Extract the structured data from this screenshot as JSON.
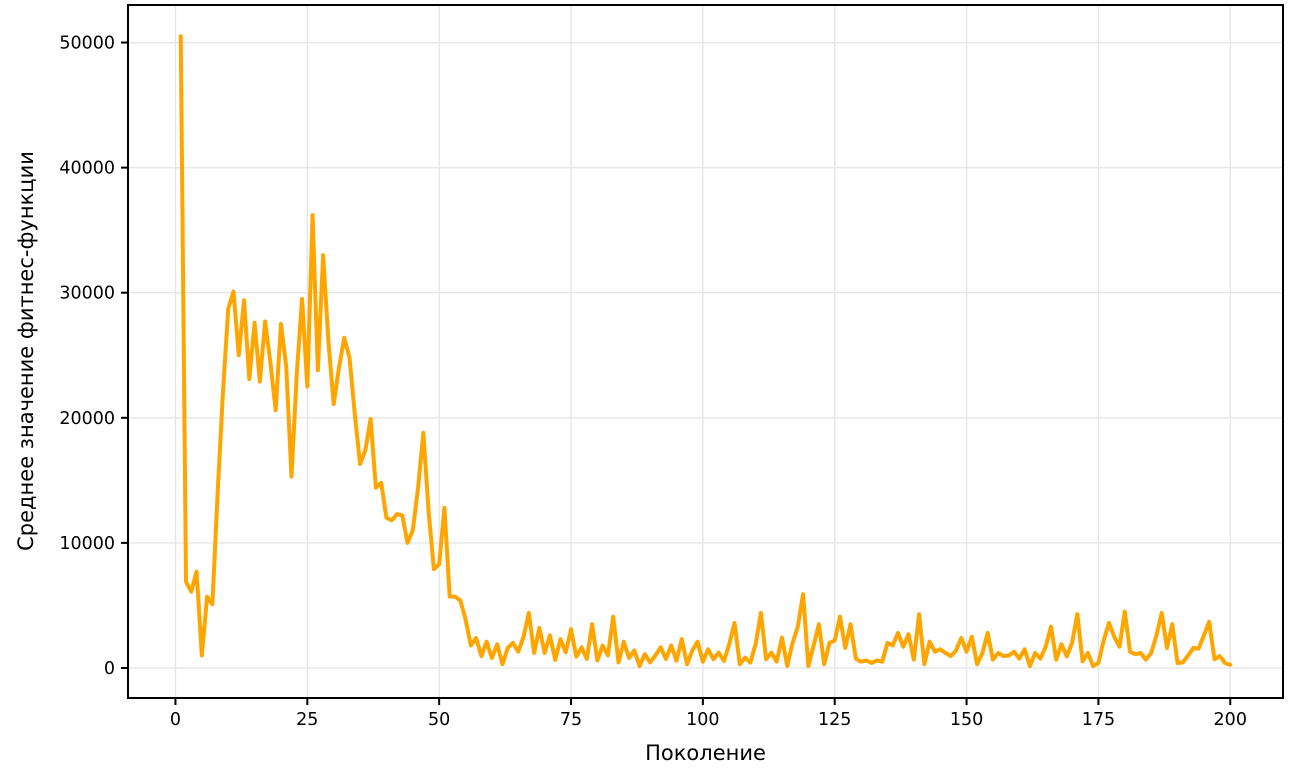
{
  "figure": {
    "background": "#ffffff",
    "line_color": "#FFA500",
    "grid_color": "#e6e6e6",
    "spine_color": "#000000",
    "tick_label_color": "#000000",
    "tick_font_size": 17.5,
    "label_font_size": 21
  },
  "chart_data": {
    "type": "line",
    "title": "",
    "xlabel": "Поколение",
    "ylabel": "Среднее значение фитнес-функции",
    "legend": false,
    "grid": true,
    "x_range": [
      1,
      200
    ],
    "x_ticks": [
      0,
      25,
      50,
      75,
      100,
      125,
      150,
      175,
      200
    ],
    "y_ticks": [
      0,
      10000,
      20000,
      30000,
      40000,
      50000
    ],
    "xlim": [
      -9,
      210
    ],
    "ylim": [
      -2400,
      53000
    ],
    "series": [
      {
        "name": "Среднее значение фитнес-функции",
        "color": "#FFA500",
        "values": [
          50500,
          6900,
          6100,
          7700,
          1000,
          5700,
          5100,
          14000,
          22000,
          28700,
          30100,
          25000,
          29400,
          23100,
          27600,
          22900,
          27700,
          24400,
          20600,
          27500,
          24100,
          15300,
          23500,
          29500,
          22500,
          36200,
          23800,
          33000,
          26100,
          21100,
          24000,
          26400,
          24800,
          20300,
          16300,
          17400,
          19900,
          14400,
          14800,
          12000,
          11800,
          12300,
          12200,
          10000,
          11000,
          14400,
          18800,
          12500,
          7900,
          8300,
          12800,
          5700,
          5700,
          5400,
          3900,
          1800,
          2400,
          950,
          2100,
          800,
          1900,
          300,
          1600,
          2000,
          1300,
          2500,
          4400,
          1200,
          3200,
          1200,
          2600,
          650,
          2300,
          1250,
          3100,
          900,
          1650,
          720,
          3500,
          600,
          1800,
          1000,
          4100,
          450,
          2100,
          800,
          1400,
          150,
          1100,
          450,
          1000,
          1650,
          720,
          1800,
          590,
          2300,
          300,
          1400,
          2100,
          500,
          1500,
          700,
          1230,
          560,
          1900,
          3600,
          300,
          830,
          430,
          1900,
          4400,
          700,
          1230,
          510,
          2430,
          160,
          2000,
          3300,
          5900,
          150,
          1800,
          3500,
          300,
          2000,
          2200,
          4100,
          1600,
          3500,
          750,
          500,
          600,
          400,
          600,
          500,
          2000,
          1800,
          2800,
          1700,
          2700,
          670,
          4300,
          300,
          2100,
          1300,
          1500,
          1200,
          950,
          1400,
          2400,
          1300,
          2500,
          300,
          1200,
          2800,
          670,
          1200,
          950,
          1000,
          1300,
          750,
          1500,
          150,
          1200,
          750,
          1700,
          3300,
          670,
          1900,
          930,
          2000,
          4300,
          530,
          1200,
          150,
          400,
          2200,
          3600,
          2500,
          1700,
          4500,
          1300,
          1100,
          1200,
          670,
          1200,
          2600,
          4400,
          1600,
          3500,
          400,
          450,
          1000,
          1600,
          1550,
          2600,
          3700,
          700,
          950,
          400,
          250
        ]
      }
    ]
  }
}
